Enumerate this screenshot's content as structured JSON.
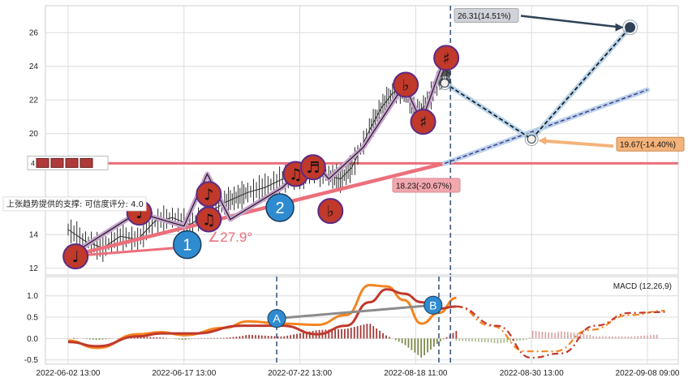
{
  "chart_data": [
    {
      "type": "line",
      "panel": "price",
      "ylim": [
        11.6,
        27.6
      ],
      "yticks": [
        12,
        14,
        20,
        22,
        24,
        26
      ],
      "x_domain": [
        0,
        100
      ],
      "price_series": [
        [
          0,
          14.3
        ],
        [
          3,
          13.6
        ],
        [
          6,
          13.2
        ],
        [
          9,
          13.9
        ],
        [
          12,
          13.7
        ],
        [
          15,
          14.8
        ],
        [
          18,
          15.0
        ],
        [
          21,
          14.6
        ],
        [
          24,
          15.2
        ],
        [
          27,
          15.9
        ],
        [
          29,
          16.2
        ],
        [
          31,
          16.5
        ],
        [
          34,
          16.8
        ],
        [
          37,
          17.3
        ],
        [
          40,
          17.4
        ],
        [
          42,
          17.8
        ],
        [
          45,
          17.5
        ],
        [
          47,
          17.3
        ],
        [
          49,
          18.0
        ],
        [
          52,
          20.2
        ],
        [
          54,
          21.5
        ],
        [
          56,
          22.4
        ],
        [
          58,
          22.7
        ],
        [
          60,
          21.1
        ],
        [
          62,
          21.8
        ],
        [
          64,
          23.2
        ],
        [
          65,
          23.8
        ],
        [
          66,
          23.5
        ]
      ],
      "zigzag": [
        [
          0,
          12.7
        ],
        [
          12,
          15.3
        ],
        [
          20,
          14.5
        ],
        [
          24,
          17.6
        ],
        [
          28,
          14.9
        ],
        [
          37,
          16.8
        ],
        [
          42,
          18.5
        ],
        [
          45,
          17.3
        ],
        [
          51,
          19.2
        ],
        [
          58,
          22.9
        ],
        [
          61,
          20.7
        ],
        [
          65,
          24.5
        ]
      ],
      "support_line": {
        "x0": 0,
        "y0": 12.7,
        "x1": 65,
        "y1": 18.23
      },
      "support_extension": {
        "x0": 65,
        "y0": 18.23,
        "x1": 100,
        "y1": 22.6
      },
      "resistance_level": 18.23,
      "forecast": [
        [
          65,
          23.0
        ],
        [
          80,
          19.67
        ],
        [
          97,
          26.31
        ]
      ],
      "angle_label": "∠27.9°",
      "annotations": [
        {
          "text": "26.31(14.51%)",
          "x": 97,
          "y": 26.31
        },
        {
          "text": "19.67(-14.40%)",
          "x": 80,
          "y": 19.67
        },
        {
          "text": "18.23(-20.67%)",
          "x": 65,
          "y": 18.23
        }
      ],
      "support_note": "上张趋势提供的支撑: 可信度评分: 4.0",
      "level_marker": "4",
      "wave_points": [
        {
          "label": "1",
          "x": 20,
          "y": 13.4
        },
        {
          "label": "2",
          "x": 36,
          "y": 15.6
        }
      ],
      "note_markers": [
        {
          "symbol": "♩",
          "x": 1,
          "y": 12.7
        },
        {
          "symbol": "♩",
          "x": 12,
          "y": 15.3
        },
        {
          "symbol": "♪",
          "x": 24,
          "y": 16.4
        },
        {
          "symbol": "♫",
          "x": 24,
          "y": 14.9
        },
        {
          "symbol": "♫",
          "x": 39,
          "y": 17.6
        },
        {
          "symbol": "♬",
          "x": 42,
          "y": 18.0
        },
        {
          "symbol": "♭",
          "x": 45,
          "y": 15.4
        },
        {
          "symbol": "♭",
          "x": 58,
          "y": 22.9
        },
        {
          "symbol": "♯",
          "x": 61,
          "y": 20.7
        },
        {
          "symbol": "♯",
          "x": 65,
          "y": 24.5
        }
      ],
      "colors": {
        "zigzag": "#c9a3cf",
        "support": "#ec6f7c",
        "forecast": "#b7d3ea",
        "resistance": "#e96f7b",
        "marker_fill": "#c0392b",
        "marker_stroke": "#5b2a86",
        "wave": "#2e8bd0",
        "point": "#2f4256",
        "label_up": "#cfd2d8",
        "label_down": "#f4b37a",
        "label_mid": "#f2a7ae"
      }
    },
    {
      "type": "line",
      "panel": "MACD",
      "title": "MACD (12,26,9)",
      "ylim": [
        -0.6,
        1.45
      ],
      "yticks": [
        -0.5,
        0.0,
        0.5,
        1.0
      ],
      "x_domain": [
        0,
        100
      ],
      "dif": [
        [
          0,
          -0.05
        ],
        [
          5,
          -0.22
        ],
        [
          12,
          0.1
        ],
        [
          16,
          0.15
        ],
        [
          20,
          0.08
        ],
        [
          27,
          0.25
        ],
        [
          31,
          0.4
        ],
        [
          37,
          0.35
        ],
        [
          43,
          0.32
        ],
        [
          48,
          0.55
        ],
        [
          52,
          1.25
        ],
        [
          55,
          1.22
        ],
        [
          58,
          0.9
        ],
        [
          61,
          0.35
        ],
        [
          64,
          0.6
        ],
        [
          67,
          0.95
        ]
      ],
      "dea": [
        [
          0,
          -0.08
        ],
        [
          5,
          -0.18
        ],
        [
          12,
          0.05
        ],
        [
          16,
          0.12
        ],
        [
          22,
          0.12
        ],
        [
          30,
          0.3
        ],
        [
          37,
          0.3
        ],
        [
          43,
          0.1
        ],
        [
          48,
          0.3
        ],
        [
          52,
          0.85
        ],
        [
          55,
          1.15
        ],
        [
          58,
          1.05
        ],
        [
          61,
          0.85
        ],
        [
          64,
          0.7
        ],
        [
          67,
          0.75
        ]
      ],
      "dif_forecast": [
        [
          67,
          0.75
        ],
        [
          73,
          0.3
        ],
        [
          79,
          -0.3
        ],
        [
          84,
          -0.3
        ],
        [
          90,
          0.2
        ],
        [
          97,
          0.55
        ],
        [
          103,
          0.65
        ]
      ],
      "dea_forecast": [
        [
          67,
          0.75
        ],
        [
          74,
          0.3
        ],
        [
          80,
          -0.45
        ],
        [
          85,
          -0.35
        ],
        [
          91,
          0.3
        ],
        [
          97,
          0.6
        ],
        [
          103,
          0.62
        ]
      ],
      "points": [
        {
          "label": "A",
          "x": 36,
          "y": 0.47
        },
        {
          "label": "B",
          "x": 63,
          "y": 0.78
        }
      ],
      "colors": {
        "dif": "#f5841f",
        "dea": "#c0392b",
        "hist_up": "#a33a3a",
        "hist_down": "#7d8b4a",
        "forecast_hist": "#d8a0a0",
        "ab_line": "#8c8c8c",
        "vline": "#3d5a80"
      }
    }
  ],
  "x_axis": {
    "ticks": [
      "2022-06-02 13:00",
      "2022-06-17 13:00",
      "2022-07-22 13:00",
      "2022-08-18 11:00",
      "2022-08-30 13:00",
      "2022-09-08 09:00"
    ],
    "tick_positions": [
      0,
      20,
      40,
      60,
      80,
      100
    ]
  },
  "vlines": [
    {
      "x": 66,
      "panel": "price"
    },
    {
      "x": 36,
      "panel": "macd"
    },
    {
      "x": 64,
      "panel": "macd"
    },
    {
      "x": 66,
      "panel": "macd"
    }
  ]
}
